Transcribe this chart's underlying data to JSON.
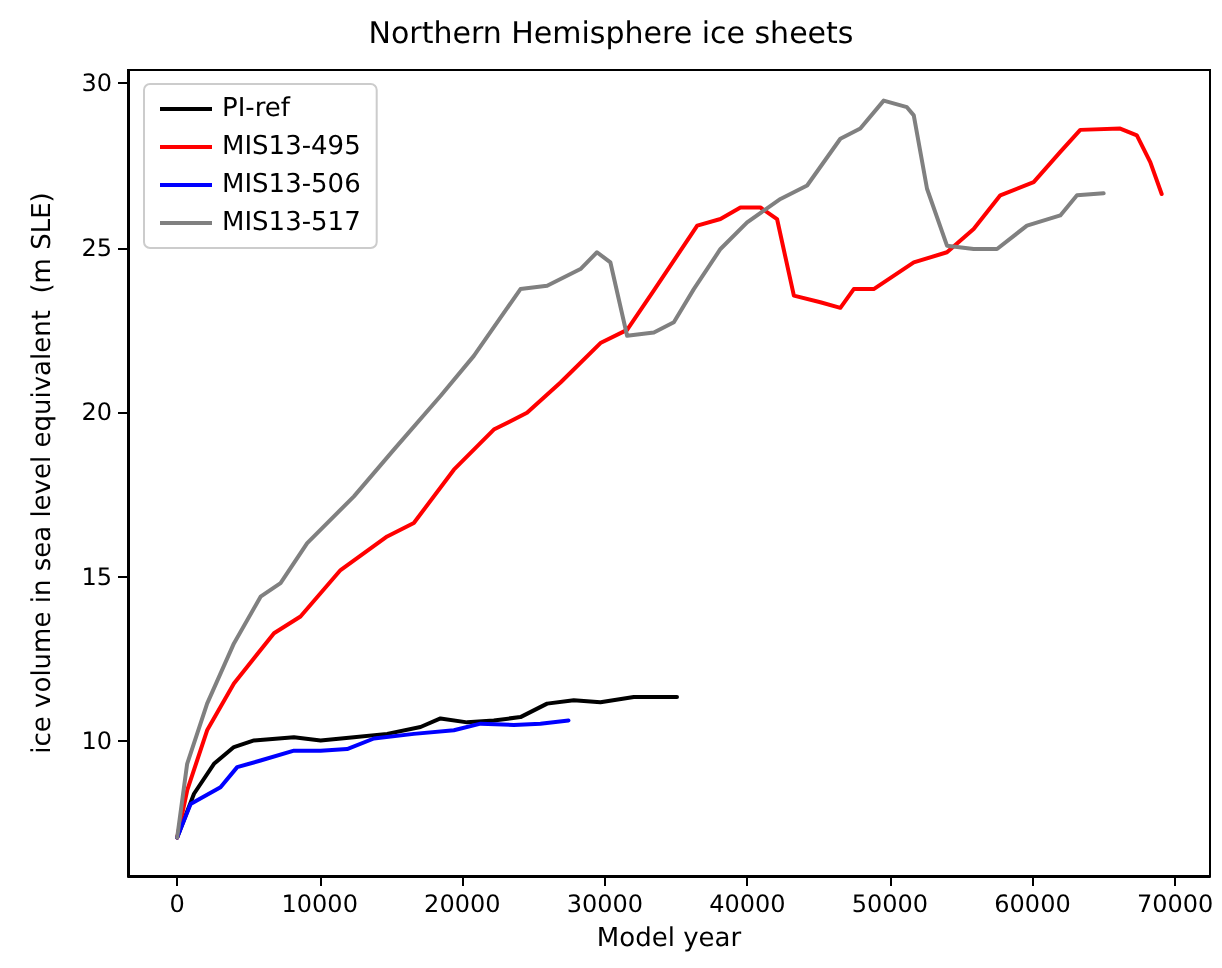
{
  "chart_data": {
    "type": "line",
    "title": "Northern Hemisphere ice sheets",
    "xlabel": "Model year",
    "ylabel": "ice volume in sea level equivalent  (m SLE)",
    "xlim": [
      -3450,
      72450
    ],
    "xticks": [
      0,
      10000,
      20000,
      30000,
      40000,
      50000,
      60000,
      70000
    ],
    "ylim": [
      5.9,
      30.4
    ],
    "yticks": [
      10,
      15,
      20,
      25,
      30
    ],
    "grid": false,
    "legend": "top left",
    "marker": "none",
    "line_style": "solid",
    "series": [
      {
        "name": "PI-ref",
        "color": "#000000",
        "x": [
          0,
          1180,
          2580,
          3980,
          5390,
          8190,
          10060,
          12400,
          14730,
          17070,
          18470,
          20340,
          22210,
          24080,
          25950,
          27820,
          29690,
          32030,
          35060
        ],
        "values": [
          7.07,
          8.4,
          9.31,
          9.82,
          10.02,
          10.12,
          10.02,
          10.12,
          10.22,
          10.43,
          10.69,
          10.57,
          10.63,
          10.73,
          11.14,
          11.24,
          11.18,
          11.34,
          11.34
        ]
      },
      {
        "name": "MIS13-495",
        "color": "#ff0000",
        "x": [
          0,
          700,
          2100,
          3980,
          6790,
          8650,
          11460,
          14730,
          16600,
          19410,
          22210,
          24540,
          26890,
          29690,
          31560,
          33440,
          36480,
          38110,
          39510,
          40910,
          42080,
          43260,
          45120,
          46520,
          47460,
          48860,
          51670,
          54000,
          55870,
          57740,
          60080,
          61950,
          63350,
          66150,
          67320,
          68260,
          69060
        ],
        "values": [
          7.07,
          8.5,
          10.33,
          11.75,
          13.28,
          13.79,
          15.2,
          16.22,
          16.63,
          18.25,
          19.47,
          19.98,
          20.9,
          22.1,
          22.5,
          23.7,
          25.67,
          25.87,
          26.22,
          26.22,
          25.87,
          23.54,
          23.34,
          23.17,
          23.74,
          23.74,
          24.55,
          24.86,
          25.57,
          26.59,
          26.99,
          27.91,
          28.58,
          28.62,
          28.41,
          27.6,
          26.63
        ]
      },
      {
        "name": "MIS13-506",
        "color": "#0000ff",
        "x": [
          0,
          940,
          3040,
          4210,
          5850,
          8190,
          10060,
          11920,
          13800,
          16600,
          19410,
          21280,
          23620,
          25480,
          27450
        ],
        "values": [
          7.07,
          8.09,
          8.6,
          9.21,
          9.41,
          9.71,
          9.71,
          9.76,
          10.08,
          10.22,
          10.33,
          10.53,
          10.49,
          10.53,
          10.63
        ]
      },
      {
        "name": "MIS13-517",
        "color": "#808080",
        "x": [
          0,
          700,
          2100,
          3980,
          5850,
          7250,
          9120,
          12400,
          15200,
          18470,
          20810,
          24080,
          25950,
          28290,
          29450,
          30390,
          31560,
          33440,
          34840,
          36240,
          38110,
          39980,
          42320,
          44190,
          46520,
          47920,
          49560,
          51190,
          51670,
          52600,
          54000,
          55870,
          57510,
          59610,
          61950,
          63120,
          64990
        ],
        "values": [
          7.07,
          9.31,
          11.14,
          12.97,
          14.39,
          14.8,
          16.02,
          17.44,
          18.86,
          20.49,
          21.71,
          23.74,
          23.84,
          24.35,
          24.86,
          24.55,
          22.32,
          22.42,
          22.73,
          23.74,
          24.96,
          25.77,
          26.48,
          26.89,
          28.31,
          28.62,
          29.47,
          29.27,
          29.02,
          26.79,
          25.06,
          24.96,
          24.96,
          25.67,
          25.98,
          26.59,
          26.65
        ]
      }
    ]
  }
}
